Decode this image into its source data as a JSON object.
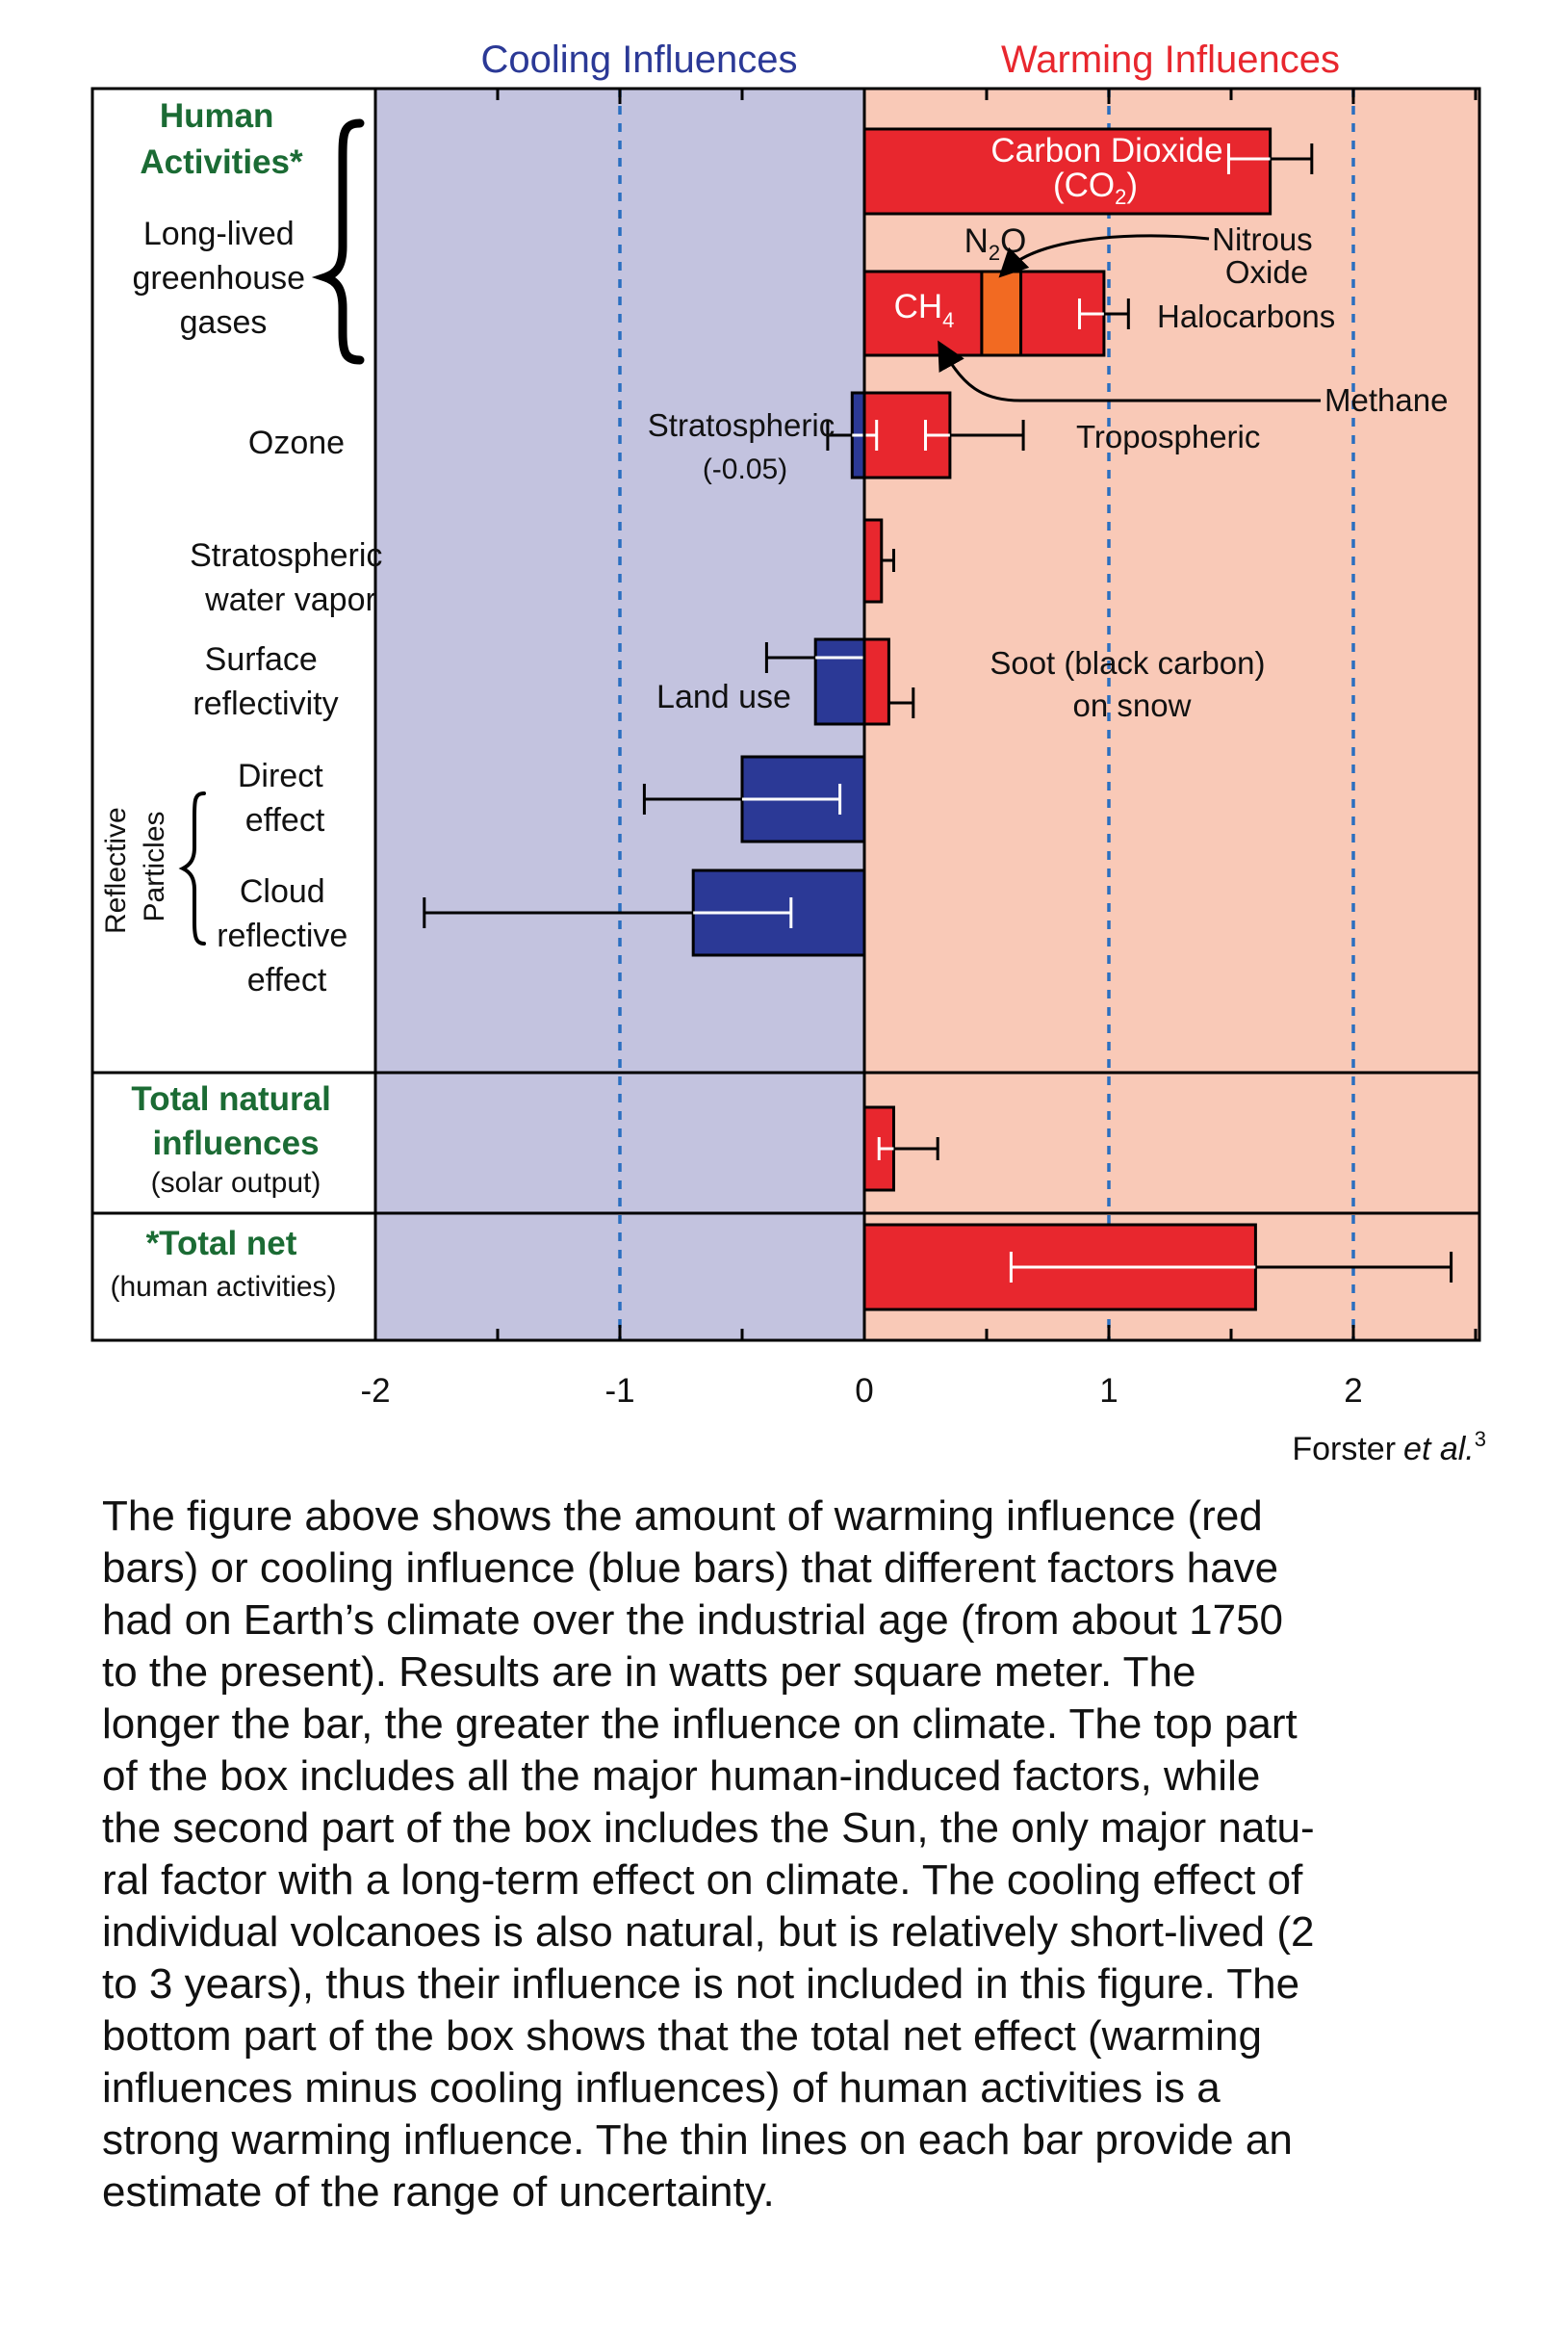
{
  "chart_data": {
    "type": "bar",
    "orientation": "horizontal",
    "title": "",
    "xlabel": "",
    "ylabel": "",
    "xlim": [
      -2,
      2.5
    ],
    "x_ticks": [
      -2,
      -1,
      0,
      1,
      2
    ],
    "gridlines": [
      -1,
      1,
      2
    ],
    "header_left": "Cooling Influences",
    "header_right": "Warming Influences",
    "colors": {
      "warming": "#e8272e",
      "cooling": "#2b3996",
      "n2o": "#f26a22",
      "cooling_bg": "#c3c3df",
      "warming_bg": "#f9c9b7",
      "header_left": "#2b3996",
      "header_right": "#e8272e",
      "group_label": "#1b6b34"
    },
    "groups": [
      {
        "label_lines": [
          "Human",
          "Activities*"
        ]
      },
      {
        "label_lines": [
          "Total natural",
          "influences"
        ],
        "sublabel": "(solar output)"
      },
      {
        "label_lines": [
          "*Total net"
        ],
        "sublabel": "(human activities)"
      }
    ],
    "rows": [
      {
        "category": "Long-lived greenhouse gases",
        "label_lines": [
          "Long-lived",
          "greenhouse",
          "gases"
        ]
      },
      {
        "category": "Ozone",
        "label_lines": [
          "Ozone"
        ]
      },
      {
        "category": "Stratospheric water vapor",
        "label_lines": [
          "Stratospheric",
          "water vapor"
        ]
      },
      {
        "category": "Surface reflectivity",
        "label_lines": [
          "Surface",
          "reflectivity"
        ]
      },
      {
        "category": "Direct effect",
        "label_lines": [
          "Direct",
          "effect"
        ]
      },
      {
        "category": "Cloud reflective effect",
        "label_lines": [
          "Cloud",
          "reflective",
          "effect"
        ]
      }
    ],
    "side_label_lines": [
      "Reflective",
      "Particles"
    ],
    "series": [
      {
        "category": "Long-lived greenhouse gases",
        "component": "Carbon Dioxide (CO2)",
        "value": 1.66,
        "low": 1.49,
        "high": 1.83
      },
      {
        "category": "Long-lived greenhouse gases",
        "component": "CH4",
        "value": 0.48
      },
      {
        "category": "Long-lived greenhouse gases",
        "component": "N2O",
        "value": 0.16
      },
      {
        "category": "Long-lived greenhouse gases",
        "component": "Halocarbons",
        "value": 0.34,
        "total": 0.98,
        "low": 0.88,
        "high": 1.08
      },
      {
        "category": "Ozone",
        "component": "Stratospheric",
        "value": -0.05,
        "low": -0.15,
        "high": 0.05
      },
      {
        "category": "Ozone",
        "component": "Tropospheric",
        "value": 0.35,
        "low": 0.25,
        "high": 0.65
      },
      {
        "category": "Stratospheric water vapor",
        "component": "Stratospheric water vapor",
        "value": 0.07,
        "low": 0.02,
        "high": 0.12
      },
      {
        "category": "Surface reflectivity",
        "component": "Land use",
        "value": -0.2,
        "low": -0.4,
        "high": 0.0
      },
      {
        "category": "Surface reflectivity",
        "component": "Soot (black carbon) on snow",
        "value": 0.1,
        "low": 0.0,
        "high": 0.2
      },
      {
        "category": "Direct effect",
        "component": "Direct effect",
        "value": -0.5,
        "low": -0.9,
        "high": -0.1
      },
      {
        "category": "Cloud reflective effect",
        "component": "Cloud reflective effect",
        "value": -0.7,
        "low": -1.8,
        "high": -0.3
      },
      {
        "category": "Total natural influences",
        "component": "Solar output",
        "value": 0.12,
        "low": 0.06,
        "high": 0.3
      },
      {
        "category": "Total net",
        "component": "Human activities",
        "value": 1.6,
        "low": 0.6,
        "high": 2.4
      }
    ],
    "annotations": {
      "co2_line1": "Carbon Dioxide",
      "co2_line2a": "(CO",
      "co2_sub": "2",
      "co2_line2b": ")",
      "n2o_main": "N",
      "n2o_sub": "2",
      "n2o_end": "O",
      "ch4_main": "CH",
      "ch4_sub": "4",
      "nitrous_line1": "Nitrous",
      "nitrous_line2": "Oxide",
      "halocarbons": "Halocarbons",
      "methane": "Methane",
      "stratospheric": "Stratospheric",
      "stratospheric_value": "(-0.05)",
      "tropospheric": "Tropospheric",
      "land_use": "Land use",
      "soot_line1": "Soot (black carbon)",
      "soot_line2": "on snow"
    },
    "source_name": "Forster",
    "source_etal": "et al.",
    "source_ref": "3"
  },
  "caption_lines": [
    "The figure above shows the amount of warming influence (red",
    "bars) or cooling influence (blue bars) that different factors have",
    "had on Earth’s climate over the industrial age (from about 1750",
    "to the present). Results are in watts per square meter. The",
    "longer the bar, the greater the influence on climate. The top part",
    "of the box includes all the major human-induced factors, while",
    "the second part of the box includes the Sun, the only major natu-",
    "ral factor with a long-term effect on climate. The cooling effect of",
    "individual volcanoes is also natural, but is relatively short-lived (2",
    "to 3 years), thus their influence is not included in this figure. The",
    "bottom part of the box shows that the total net effect (warming",
    "influences minus cooling influences) of human activities is a",
    "strong warming influence. The thin lines on each bar provide an",
    "estimate of the range of uncertainty."
  ]
}
